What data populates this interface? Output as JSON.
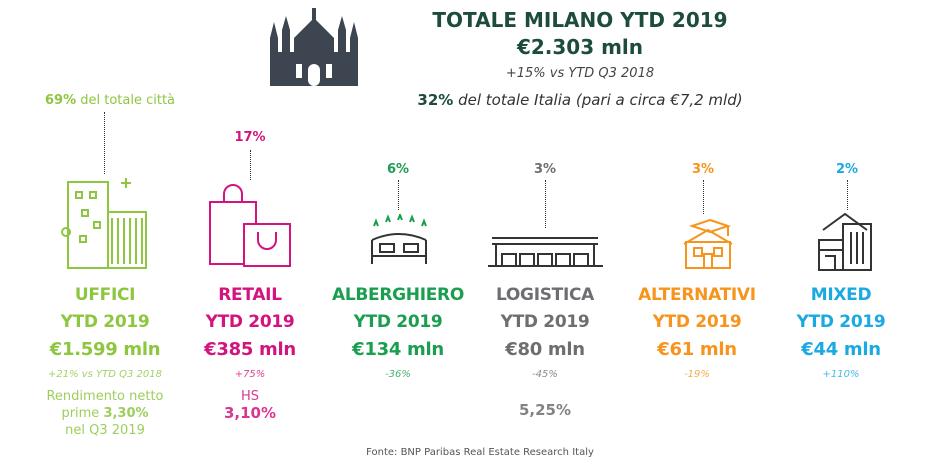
{
  "header": {
    "title": "TOTALE MILANO YTD 2019",
    "total": "€2.303 mln",
    "change": "+15% vs YTD Q3 2018",
    "italy_share_pct": "32%",
    "italy_share_text": " del totale Italia (pari a circa €7,2 mld)",
    "icon": "cathedral-icon"
  },
  "colors": {
    "uffici": "#8dc63f",
    "retail": "#d4147e",
    "alberghiero": "#1a9e4f",
    "logistica": "#6d6e71",
    "alternativi": "#f7941d",
    "mixed": "#1ba9e1",
    "title": "#1d4d3a"
  },
  "sectors": [
    {
      "pct": "69%",
      "pct_suffix": " del totale città",
      "name": "UFFICI",
      "period": "YTD 2019",
      "value": "€1.599 mln",
      "change": "+21% vs YTD Q3 2018",
      "note_pre": "Rendimento netto",
      "note_mid": "prime ",
      "note_val": "3,30%",
      "note_post": "nel Q3 2019",
      "icon": "office-buildings-icon"
    },
    {
      "pct": "17%",
      "name": "RETAIL",
      "period": "YTD 2019",
      "value": "€385 mln",
      "change": "+75%",
      "note_pre": "HS",
      "note_val": "3,10%",
      "icon": "shopping-bags-icon"
    },
    {
      "pct": "6%",
      "name": "ALBERGHIERO",
      "period": "YTD 2019",
      "value": "€134 mln",
      "change": "-36%",
      "icon": "hotel-bed-stars-icon"
    },
    {
      "pct": "3%",
      "name": "LOGISTICA",
      "period": "YTD 2019",
      "value": "€80 mln",
      "change": "-45%",
      "note_val": "5,25%",
      "icon": "warehouse-icon"
    },
    {
      "pct": "3%",
      "name": "ALTERNATIVI",
      "period": "YTD 2019",
      "value": "€61 mln",
      "change": "-19%",
      "icon": "school-graduation-icon"
    },
    {
      "pct": "2%",
      "name": "MIXED",
      "period": "YTD 2019",
      "value": "€44 mln",
      "change": "+110%",
      "icon": "mixed-buildings-icon"
    }
  ],
  "source": "Fonte: BNP Paribas Real Estate Research Italy"
}
